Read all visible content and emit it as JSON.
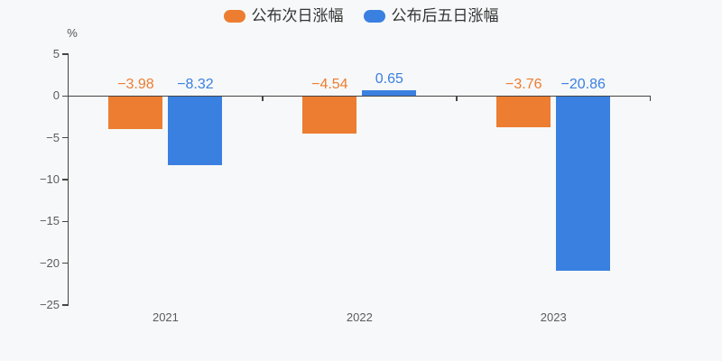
{
  "chart": {
    "background": "#f7f8f9"
  },
  "chart_data": {
    "type": "bar",
    "title": "",
    "categories": [
      "2021",
      "2022",
      "2023"
    ],
    "series": [
      {
        "key": "next-day",
        "name": "公布次日涨幅",
        "color": "#ed7d31",
        "values": [
          -3.98,
          -4.54,
          -3.76
        ],
        "labels": [
          "−3.98",
          "−4.54",
          "−3.76"
        ]
      },
      {
        "key": "five-day",
        "name": "公布后五日涨幅",
        "color": "#3a80e1",
        "values": [
          -8.32,
          0.65,
          -20.86
        ],
        "labels": [
          "−8.32",
          "0.65",
          "−20.86"
        ]
      }
    ],
    "xlabel": "",
    "ylabel": "%",
    "ylim": [
      -25,
      5
    ],
    "yticks": [
      5,
      0,
      -5,
      -10,
      -15,
      -20,
      -25
    ],
    "ytick_labels": [
      "5",
      "0",
      "−5",
      "−10",
      "−15",
      "−20",
      "−25"
    ],
    "legend_position": "top-center",
    "grid": false,
    "value_label_position": "above-bar"
  },
  "colors": {
    "background": "#f7f8f9",
    "axis_line": "#454545",
    "axis_text": "#5c5c5c",
    "legend_text": "#333333",
    "orange": "#ed7d31",
    "blue": "#3a80e1"
  }
}
